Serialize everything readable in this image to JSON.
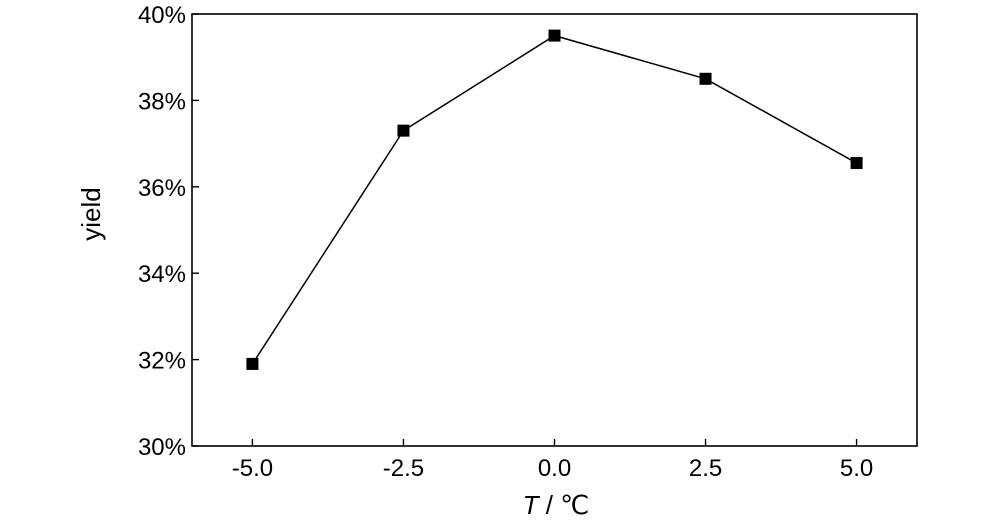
{
  "chart_data": {
    "type": "line",
    "ylabel": "yield",
    "xlabel_var": "T",
    "xlabel_unit": " / ℃",
    "x": [
      -5.0,
      -2.5,
      0.0,
      2.5,
      5.0
    ],
    "series": [
      {
        "values": [
          31.9,
          37.3,
          39.5,
          38.5,
          36.55
        ]
      }
    ],
    "xlim": [
      -6.0,
      6.0
    ],
    "ylim": [
      30,
      40
    ],
    "x_ticks": [
      -5.0,
      -2.5,
      0.0,
      2.5,
      5.0
    ],
    "x_tick_labels": [
      "-5.0",
      "-2.5",
      "0.0",
      "2.5",
      "5.0"
    ],
    "y_ticks": [
      30,
      32,
      34,
      36,
      38,
      40
    ],
    "y_tick_labels": [
      "30%",
      "32%",
      "34%",
      "36%",
      "38%",
      "40%"
    ],
    "grid": false,
    "marker": "square",
    "line_color": "#000000",
    "marker_color": "#000000"
  }
}
